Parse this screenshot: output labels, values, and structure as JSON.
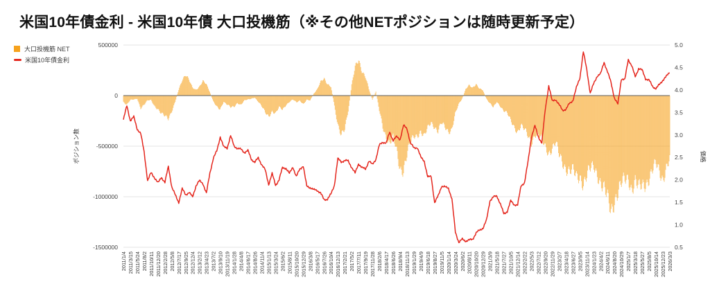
{
  "title": "米国10年債金利 - 米国10年債 大口投機筋（※その他NETポジションは随時更新予定）",
  "legend": {
    "items": [
      {
        "label": "大口投機筋  NET",
        "color": "#F6A21D",
        "type": "bar"
      },
      {
        "label": "米国10年債金利",
        "color": "#E4251C",
        "type": "line"
      }
    ]
  },
  "chart_data": {
    "type": "bar+line combo",
    "title": "米国10年債金利 - 米国10年債 大口投機筋（※その他NETポジションは随時更新予定）",
    "legend_position": "top-left",
    "grid": "horizontal-only",
    "left_axis": {
      "title": "ポジション数",
      "tick_labels": [
        "500000",
        "0",
        "-500000",
        "-1000000",
        "-1500000"
      ],
      "range": [
        -1500000,
        500000
      ]
    },
    "right_axis": {
      "title": "価格",
      "tick_labels": [
        "5.0",
        "4.5",
        "4.0",
        "3.5",
        "3.0",
        "2.5",
        "2.0",
        "1.5",
        "1.0",
        "0.5"
      ],
      "range": [
        0.5,
        5.0
      ]
    },
    "x_tick_labels": [
      "2011/1/4",
      "2011/3/15",
      "2011/5/24",
      "2011/8/2",
      "2011/10/11",
      "2011/12/20",
      "2012/2/28",
      "2012/5/8",
      "2012/7/17",
      "2012/9/25",
      "2012/12/4",
      "2013/2/12",
      "2013/4/23",
      "2013/7/2",
      "2013/9/10",
      "2013/11/19",
      "2014/1/28",
      "2014/4/8",
      "2014/6/17",
      "2014/8/26",
      "2014/11/4",
      "2015/1/13",
      "2015/3/24",
      "2015/6/2",
      "2015/8/11",
      "2015/10/20",
      "2015/12/29",
      "2016/3/8",
      "2016/5/17",
      "2016/7/26",
      "2016/10/4",
      "2016/12/13",
      "2017/2/21",
      "2017/5/2",
      "2017/7/11",
      "2017/9/19",
      "2017/11/28",
      "2018/2/6",
      "2018/4/17",
      "2018/6/26",
      "2018/9/4",
      "2018/11/13",
      "2019/1/29",
      "2019/4/9",
      "2019/6/18",
      "2019/8/27",
      "2019/11/5",
      "2020/1/14",
      "2020/3/24",
      "2020/6/2",
      "2020/8/11",
      "2020/10/20",
      "2020/12/29",
      "2021/3/9",
      "2021/5/18",
      "2021/7/27",
      "2021/10/5",
      "2021/12/14",
      "2022/2/22",
      "2022/5/3",
      "2022/7/12",
      "2022/9/20",
      "2022/11/29",
      "2023/2/7",
      "2023/4/18",
      "2023/6/27",
      "2023/9/5",
      "2023/11/14",
      "2024/1/23",
      "2024/4/2",
      "2024/6/11",
      "2024/8/20",
      "2024/10/29",
      "2025/1/7",
      "2025/3/18",
      "2025/5/27",
      "2025/8/5",
      "2025/10/14",
      "2025/12/23",
      "2026/3/3"
    ],
    "sampling_note": "series values are sampled at every x tick label and at the midpoint between ticks (2 points per tick interval, 159 points total, weekly data approximated)",
    "series": [
      {
        "name": "大口投機筋 NET",
        "type": "bar",
        "axis": "left",
        "color": "#F6A21D",
        "values": [
          -60000,
          -90000,
          -45000,
          -40000,
          -30000,
          -120000,
          -90000,
          -50000,
          -45000,
          -100000,
          -130000,
          -180000,
          -210000,
          -230000,
          -150000,
          -60000,
          60000,
          160000,
          200000,
          150000,
          80000,
          60000,
          90000,
          140000,
          110000,
          40000,
          -60000,
          -110000,
          -130000,
          -60000,
          -90000,
          -120000,
          -110000,
          -70000,
          -90000,
          -50000,
          -40000,
          -30000,
          -20000,
          -60000,
          -110000,
          -170000,
          -200000,
          -150000,
          -180000,
          -120000,
          -140000,
          -90000,
          -60000,
          -40000,
          -70000,
          -50000,
          -80000,
          -40000,
          -50000,
          20000,
          60000,
          130000,
          170000,
          120000,
          90000,
          -100000,
          -280000,
          -400000,
          -350000,
          -150000,
          100000,
          280000,
          370000,
          250000,
          180000,
          60000,
          -40000,
          40000,
          -150000,
          -300000,
          -400000,
          -480000,
          -430000,
          -550000,
          -700000,
          -720000,
          -600000,
          -480000,
          -400000,
          -380000,
          -350000,
          -420000,
          -330000,
          -260000,
          -300000,
          -350000,
          -280000,
          -320000,
          -350000,
          -320000,
          -180000,
          -90000,
          -30000,
          60000,
          100000,
          80000,
          120000,
          70000,
          50000,
          -30000,
          -80000,
          -120000,
          -60000,
          -100000,
          -150000,
          -180000,
          -250000,
          -300000,
          -350000,
          -300000,
          -350000,
          -400000,
          -450000,
          -380000,
          -400000,
          -450000,
          -500000,
          -550000,
          -520000,
          -480000,
          -600000,
          -650000,
          -700000,
          -750000,
          -770000,
          -820000,
          -780000,
          -850000,
          -800000,
          -750000,
          -700000,
          -750000,
          -850000,
          -950000,
          -1050000,
          -1130000,
          -1000000,
          -950000,
          -900000,
          -850000,
          -800000,
          -900000,
          -850000,
          -950000,
          -900000,
          -850000,
          -800000,
          -750000,
          -700000,
          -750000,
          -800000,
          -700000,
          -650000
        ]
      },
      {
        "name": "米国10年債金利",
        "type": "line",
        "axis": "right",
        "color": "#E4251C",
        "values": [
          3.34,
          3.65,
          3.32,
          3.4,
          3.13,
          3.03,
          2.62,
          1.98,
          2.16,
          2.05,
          1.93,
          2.06,
          1.94,
          2.3,
          1.84,
          1.66,
          1.5,
          1.8,
          1.67,
          1.72,
          1.62,
          1.87,
          1.98,
          1.92,
          1.7,
          2.15,
          2.48,
          2.64,
          2.96,
          2.73,
          2.71,
          2.98,
          2.75,
          2.7,
          2.68,
          2.61,
          2.65,
          2.46,
          2.39,
          2.49,
          2.34,
          2.22,
          1.9,
          2.14,
          1.88,
          2.0,
          2.27,
          2.26,
          2.14,
          2.29,
          2.07,
          2.24,
          2.31,
          1.86,
          1.83,
          1.78,
          1.77,
          1.71,
          1.56,
          1.57,
          1.68,
          1.88,
          2.47,
          2.4,
          2.43,
          2.42,
          2.28,
          2.15,
          2.36,
          2.27,
          2.24,
          2.42,
          2.34,
          2.46,
          2.77,
          2.84,
          2.82,
          3.06,
          2.88,
          2.96,
          2.9,
          3.21,
          3.14,
          2.82,
          2.71,
          2.72,
          2.5,
          2.42,
          2.06,
          2.08,
          1.49,
          1.64,
          1.86,
          1.84,
          1.82,
          1.57,
          0.84,
          0.61,
          0.68,
          0.64,
          0.66,
          0.68,
          0.82,
          0.88,
          0.93,
          1.1,
          1.54,
          1.62,
          1.64,
          1.47,
          1.24,
          1.3,
          1.53,
          1.45,
          1.44,
          1.87,
          1.94,
          2.4,
          2.96,
          3.2,
          2.96,
          2.82,
          3.57,
          4.1,
          3.75,
          3.79,
          3.67,
          3.55,
          3.57,
          3.7,
          3.77,
          4.05,
          4.27,
          4.85,
          4.45,
          3.93,
          4.14,
          4.31,
          4.36,
          4.62,
          4.4,
          4.17,
          3.82,
          3.68,
          4.25,
          4.23,
          4.68,
          4.54,
          4.29,
          4.48,
          4.44,
          4.25,
          4.22,
          4.08,
          4.03,
          4.12,
          4.22,
          4.3,
          4.4
        ]
      }
    ]
  },
  "colors": {
    "bar": "#F6A21D",
    "line": "#E4251C",
    "grid": "#e3e3e3",
    "zero_line": "#5b5b5b",
    "axis_text": "#404040",
    "background": "#ffffff"
  }
}
